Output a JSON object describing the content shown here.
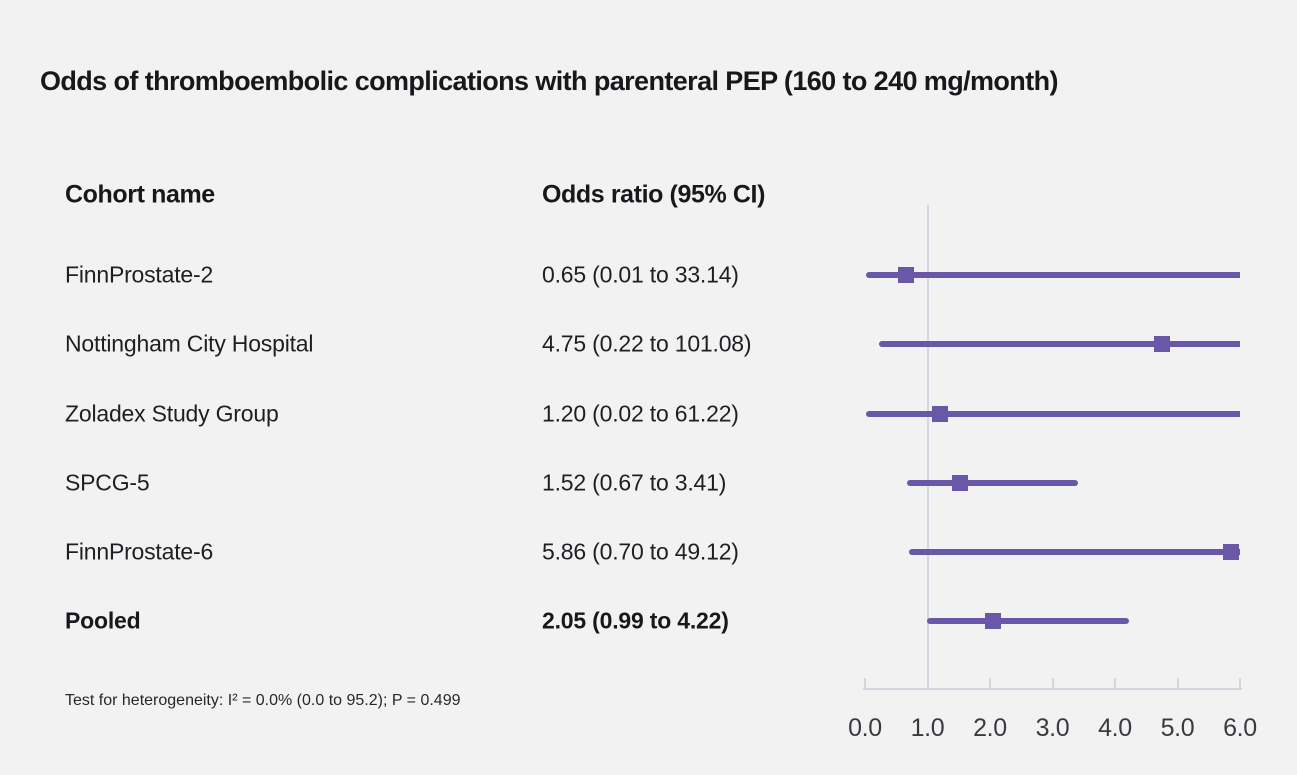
{
  "title": "Odds of thromboembolic complications with parenteral PEP (160 to 240 mg/month)",
  "columns": {
    "cohort": "Cohort name",
    "odds_ratio": "Odds ratio (95% CI)"
  },
  "footnote": "Test for heterogeneity: I² = 0.0% (0.0 to 95.2); P = 0.499",
  "colors": {
    "marker_purple": "#6958a7",
    "axis_gray": "#d2d8e1",
    "background": "#f2f2f2",
    "text": "#1d1f23"
  },
  "chart_data": {
    "type": "scatter",
    "variant": "forest-plot",
    "title": "Odds of thromboembolic complications with parenteral PEP (160 to 240 mg/month)",
    "xlabel": "Odds ratio",
    "ylabel": "",
    "xlim": [
      0,
      6
    ],
    "x_ticks": [
      "0.0",
      "1.0",
      "2.0",
      "3.0",
      "4.0",
      "5.0",
      "6.0"
    ],
    "reference_line": 1.0,
    "grid": false,
    "legend": "none",
    "rows": [
      {
        "name": "FinnProstate-2",
        "label": "0.65 (0.01 to 33.14)",
        "or": 0.65,
        "ci_low": 0.01,
        "ci_high": 33.14,
        "bold": false
      },
      {
        "name": "Nottingham City Hospital",
        "label": "4.75 (0.22 to 101.08)",
        "or": 4.75,
        "ci_low": 0.22,
        "ci_high": 101.08,
        "bold": false
      },
      {
        "name": "Zoladex Study Group",
        "label": "1.20 (0.02 to 61.22)",
        "or": 1.2,
        "ci_low": 0.02,
        "ci_high": 61.22,
        "bold": false
      },
      {
        "name": "SPCG-5",
        "label": "1.52 (0.67 to 3.41)",
        "or": 1.52,
        "ci_low": 0.67,
        "ci_high": 3.41,
        "bold": false
      },
      {
        "name": "FinnProstate-6",
        "label": "5.86 (0.70 to 49.12)",
        "or": 5.86,
        "ci_low": 0.7,
        "ci_high": 49.12,
        "bold": false
      },
      {
        "name": "Pooled",
        "label": "2.05 (0.99 to 4.22)",
        "or": 2.05,
        "ci_low": 0.99,
        "ci_high": 4.22,
        "bold": true
      }
    ]
  }
}
